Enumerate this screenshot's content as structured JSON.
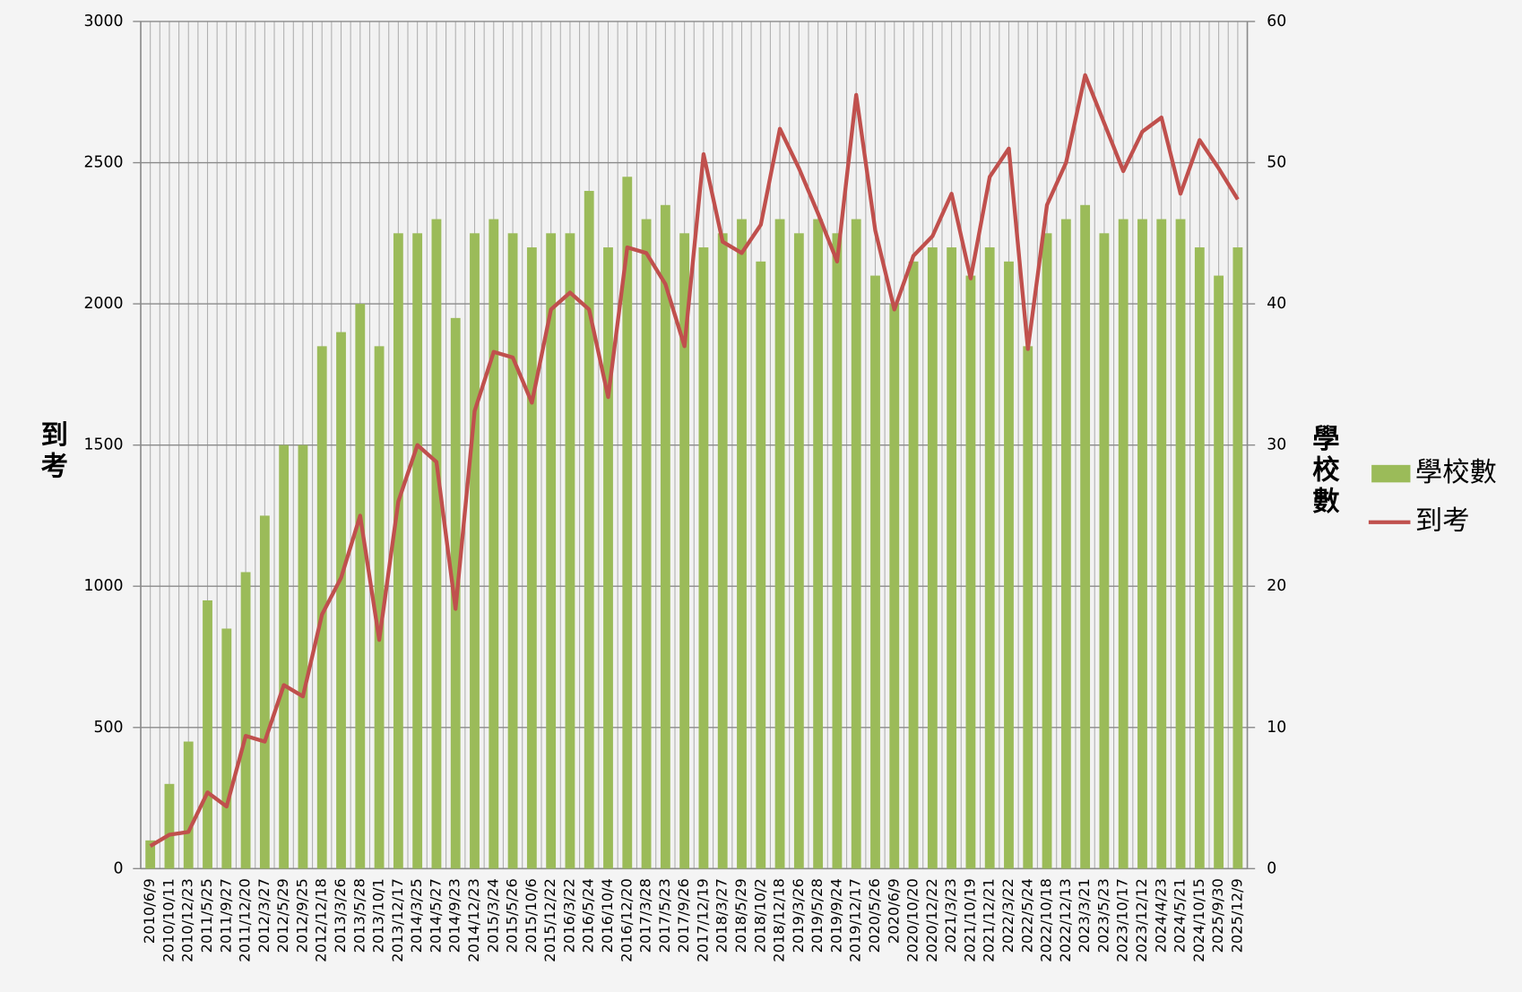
{
  "chart_data": {
    "type": "bar_line",
    "y_label": "到考",
    "y2_label": "學校數",
    "categories": [
      "2010/6/9",
      "2010/10/11",
      "2010/12/23",
      "2011/5/25",
      "2011/9/27",
      "2011/12/20",
      "2012/3/27",
      "2012/5/29",
      "2012/9/25",
      "2012/12/18",
      "2013/3/26",
      "2013/5/28",
      "2013/10/1",
      "2013/12/17",
      "2014/3/25",
      "2014/5/27",
      "2014/9/23",
      "2014/12/23",
      "2015/3/24",
      "2015/5/26",
      "2015/10/6",
      "2015/12/22",
      "2016/3/22",
      "2016/5/24",
      "2016/10/4",
      "2016/12/20",
      "2017/3/28",
      "2017/5/23",
      "2017/9/26",
      "2017/12/19",
      "2018/3/27",
      "2018/5/29",
      "2018/10/2",
      "2018/12/18",
      "2019/3/26",
      "2019/5/28",
      "2019/9/24",
      "2019/12/17",
      "2020/5/26",
      "2020/6/9",
      "2020/10/20",
      "2020/12/22",
      "2021/3/23",
      "2021/10/19",
      "2021/12/21",
      "2022/3/22",
      "2022/5/24",
      "2022/10/18",
      "2022/12/13",
      "2023/3/21",
      "2023/5/23",
      "2023/10/17",
      "2023/12/12",
      "2024/4/23",
      "2024/5/21",
      "2024/10/15",
      "2025/9/30",
      "2025/12/9"
    ],
    "series": [
      {
        "name": "學校數",
        "type": "bar",
        "axis": "y2",
        "color": "#9bbb59",
        "values": [
          2,
          6,
          9,
          19,
          17,
          21,
          25,
          30,
          30,
          37,
          38,
          40,
          37,
          45,
          45,
          46,
          39,
          45,
          46,
          45,
          44,
          45,
          45,
          48,
          44,
          49,
          46,
          47,
          45,
          44,
          45,
          46,
          43,
          46,
          45,
          46,
          45,
          46,
          42,
          40,
          43,
          44,
          44,
          42,
          44,
          43,
          37,
          45,
          46,
          47,
          45,
          46,
          46,
          46,
          46,
          44,
          42,
          44
        ]
      },
      {
        "name": "到考",
        "type": "line",
        "color": "#c0504d",
        "values": [
          80,
          120,
          130,
          270,
          220,
          470,
          450,
          650,
          610,
          900,
          1030,
          1250,
          810,
          1300,
          1500,
          1440,
          920,
          1620,
          1830,
          1810,
          1650,
          1980,
          2040,
          1980,
          1670,
          2200,
          2180,
          2070,
          1850,
          2530,
          2220,
          2180,
          2280,
          2620,
          2480,
          2320,
          2150,
          2740,
          2260,
          1980,
          2170,
          2240,
          2390,
          2090,
          2450,
          2550,
          1840,
          2350,
          2500,
          2810,
          2640,
          2470,
          2610,
          2660,
          2390,
          2580,
          2480,
          2370
        ]
      }
    ],
    "ylim": [
      0,
      3000
    ],
    "yticks": [
      0,
      500,
      1000,
      1500,
      2000,
      2500,
      3000
    ],
    "y2lim": [
      0,
      60
    ],
    "y2ticks": [
      0,
      10,
      20,
      30,
      40,
      50,
      60
    ],
    "grid": true,
    "legend": "right"
  }
}
